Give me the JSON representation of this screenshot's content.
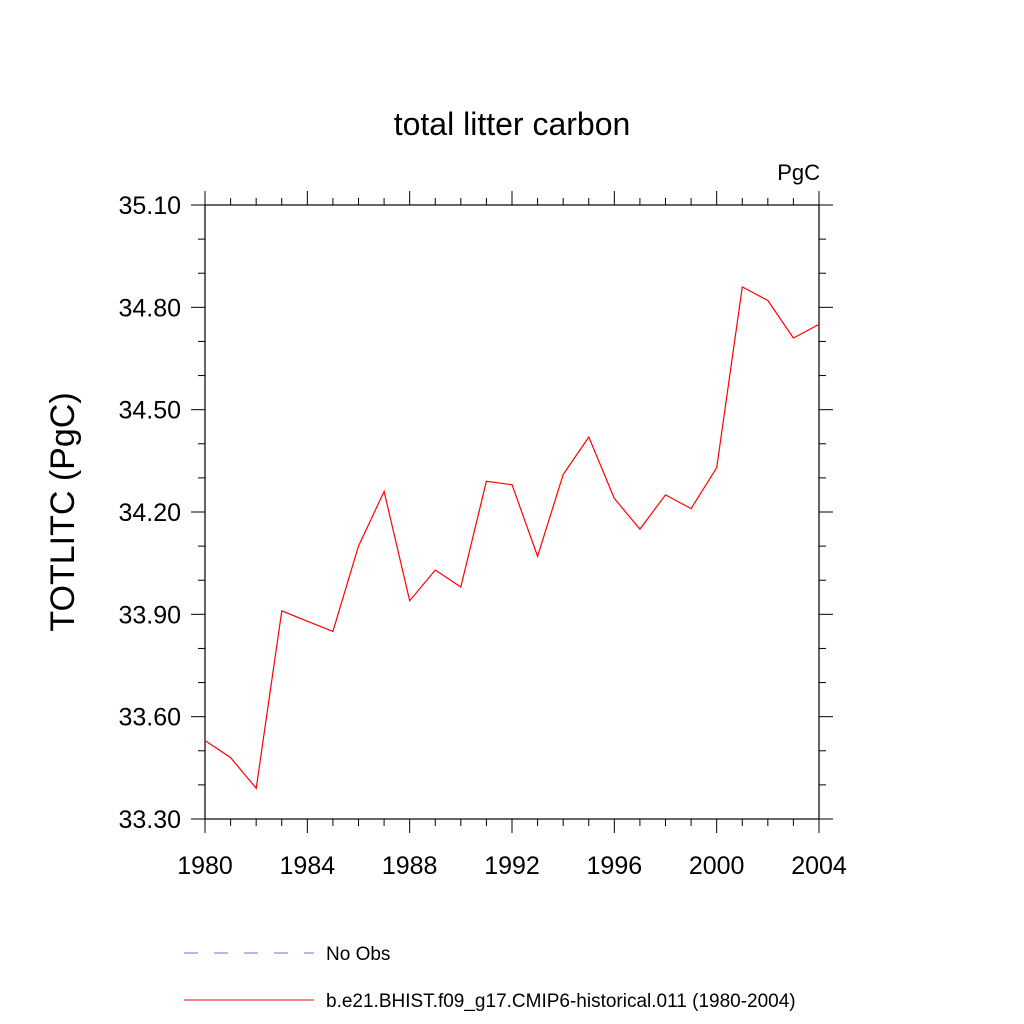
{
  "chart_data": {
    "type": "line",
    "title": "total litter carbon",
    "units": "PgC",
    "xlabel": "",
    "ylabel": "TOTLITC  (PgC)",
    "xlim": [
      1980,
      2004
    ],
    "ylim": [
      33.3,
      35.1
    ],
    "x_ticks": [
      "1980",
      "1984",
      "1988",
      "1992",
      "1996",
      "2000",
      "2004"
    ],
    "y_ticks": [
      "33.30",
      "33.60",
      "33.90",
      "34.20",
      "34.50",
      "34.80",
      "35.10"
    ],
    "grid": false,
    "legend_position": "bottom",
    "series": [
      {
        "name": "b.e21.BHIST.f09_g17.CMIP6-historical.011 (1980-2004)",
        "color": "#ff0000",
        "x": [
          1980,
          1981,
          1982,
          1983,
          1984,
          1985,
          1986,
          1987,
          1988,
          1989,
          1990,
          1991,
          1992,
          1993,
          1994,
          1995,
          1996,
          1997,
          1998,
          1999,
          2000,
          2001,
          2002,
          2003,
          2004
        ],
        "values": [
          33.53,
          33.48,
          33.39,
          33.91,
          33.88,
          33.85,
          34.1,
          34.26,
          33.94,
          34.03,
          33.98,
          34.29,
          34.28,
          34.07,
          34.31,
          34.42,
          34.24,
          34.15,
          34.25,
          34.21,
          34.33,
          34.86,
          34.82,
          34.71,
          34.75
        ]
      }
    ],
    "legend": [
      {
        "label": "No Obs",
        "color": "#7b6fcf",
        "style": "dashed"
      },
      {
        "label": "b.e21.BHIST.f09_g17.CMIP6-historical.011 (1980-2004)",
        "color": "#ff0000",
        "style": "solid"
      }
    ]
  }
}
